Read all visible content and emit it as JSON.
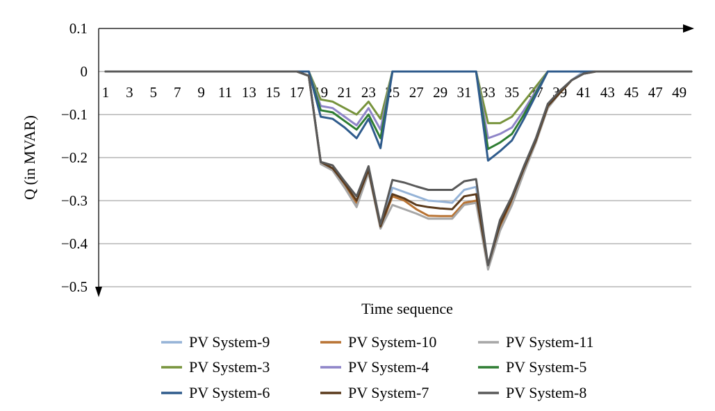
{
  "chart_data": {
    "type": "line",
    "xlabel": "Time sequence",
    "ylabel": "Q (in MVAR)",
    "ylim": [
      -0.5,
      0.1
    ],
    "xlim": [
      1,
      50
    ],
    "grid": "horizontal",
    "legend_position": "bottom",
    "y_ticks": [
      {
        "value": 0.1,
        "label": "0.1"
      },
      {
        "value": 0,
        "label": "0"
      },
      {
        "value": -0.1,
        "label": "−0.1"
      },
      {
        "value": -0.2,
        "label": "−0.2"
      },
      {
        "value": -0.3,
        "label": "−0.3"
      },
      {
        "value": -0.4,
        "label": "−0.4"
      },
      {
        "value": -0.5,
        "label": "−0.5"
      }
    ],
    "x_ticks": [
      1,
      3,
      5,
      7,
      9,
      11,
      13,
      15,
      17,
      19,
      21,
      23,
      25,
      27,
      29,
      31,
      33,
      35,
      37,
      39,
      41,
      43,
      45,
      47,
      49
    ],
    "x": [
      1,
      2,
      3,
      4,
      5,
      6,
      7,
      8,
      9,
      10,
      11,
      12,
      13,
      14,
      15,
      16,
      17,
      18,
      19,
      20,
      21,
      22,
      23,
      24,
      25,
      26,
      27,
      28,
      29,
      30,
      31,
      32,
      33,
      34,
      35,
      36,
      37,
      38,
      39,
      40,
      41,
      42,
      43,
      44,
      45,
      46,
      47,
      48,
      49,
      50
    ],
    "series": [
      {
        "name": "PV System-9",
        "color": "#95b3d7",
        "values": [
          0,
          0,
          0,
          0,
          0,
          0,
          0,
          0,
          0,
          0,
          0,
          0,
          0,
          0,
          0,
          0,
          0,
          -0.01,
          -0.21,
          -0.225,
          -0.26,
          -0.31,
          -0.23,
          -0.36,
          -0.27,
          -0.28,
          -0.29,
          -0.3,
          -0.302,
          -0.305,
          -0.275,
          -0.268,
          -0.455,
          -0.36,
          -0.3,
          -0.23,
          -0.16,
          -0.08,
          -0.05,
          -0.02,
          0,
          0,
          0,
          0,
          0,
          0,
          0,
          0,
          0,
          0
        ]
      },
      {
        "name": "PV System-10",
        "color": "#b87333",
        "values": [
          0,
          0,
          0,
          0,
          0,
          0,
          0,
          0,
          0,
          0,
          0,
          0,
          0,
          0,
          0,
          0,
          0,
          -0.01,
          -0.212,
          -0.228,
          -0.265,
          -0.305,
          -0.232,
          -0.362,
          -0.29,
          -0.3,
          -0.32,
          -0.335,
          -0.336,
          -0.336,
          -0.305,
          -0.3,
          -0.45,
          -0.36,
          -0.3,
          -0.23,
          -0.165,
          -0.08,
          -0.05,
          -0.02,
          -0.005,
          0,
          0,
          0,
          0,
          0,
          0,
          0,
          0,
          0
        ]
      },
      {
        "name": "PV System-11",
        "color": "#a6a6a6",
        "values": [
          0,
          0,
          0,
          0,
          0,
          0,
          0,
          0,
          0,
          0,
          0,
          0,
          0,
          0,
          0,
          0,
          0,
          -0.01,
          -0.215,
          -0.23,
          -0.27,
          -0.315,
          -0.235,
          -0.365,
          -0.31,
          -0.32,
          -0.33,
          -0.342,
          -0.342,
          -0.342,
          -0.31,
          -0.305,
          -0.46,
          -0.37,
          -0.31,
          -0.235,
          -0.165,
          -0.085,
          -0.05,
          -0.02,
          -0.005,
          0,
          0,
          0,
          0,
          0,
          0,
          0,
          0,
          0
        ]
      },
      {
        "name": "PV System-3",
        "color": "#77933c",
        "values": [
          0,
          0,
          0,
          0,
          0,
          0,
          0,
          0,
          0,
          0,
          0,
          0,
          0,
          0,
          0,
          0,
          0,
          0,
          -0.065,
          -0.07,
          -0.085,
          -0.1,
          -0.07,
          -0.11,
          0,
          0,
          0,
          0,
          0,
          0,
          0,
          0,
          -0.12,
          -0.12,
          -0.105,
          -0.07,
          -0.035,
          0,
          0,
          0,
          0,
          0,
          0,
          0,
          0,
          0,
          0,
          0,
          0,
          0
        ]
      },
      {
        "name": "PV System-4",
        "color": "#8e84c8",
        "values": [
          0,
          0,
          0,
          0,
          0,
          0,
          0,
          0,
          0,
          0,
          0,
          0,
          0,
          0,
          0,
          0,
          0,
          0,
          -0.08,
          -0.085,
          -0.105,
          -0.125,
          -0.085,
          -0.135,
          0,
          0,
          0,
          0,
          0,
          0,
          0,
          0,
          -0.155,
          -0.145,
          -0.13,
          -0.09,
          -0.045,
          0,
          0,
          0,
          0,
          0,
          0,
          0,
          0,
          0,
          0,
          0,
          0,
          0
        ]
      },
      {
        "name": "PV System-5",
        "color": "#2e7d32",
        "values": [
          0,
          0,
          0,
          0,
          0,
          0,
          0,
          0,
          0,
          0,
          0,
          0,
          0,
          0,
          0,
          0,
          0,
          0,
          -0.09,
          -0.095,
          -0.115,
          -0.135,
          -0.1,
          -0.155,
          0,
          0,
          0,
          0,
          0,
          0,
          0,
          0,
          -0.18,
          -0.165,
          -0.145,
          -0.1,
          -0.05,
          0,
          0,
          0,
          0,
          0,
          0,
          0,
          0,
          0,
          0,
          0,
          0,
          0
        ]
      },
      {
        "name": "PV System-6",
        "color": "#2f5b8c",
        "values": [
          0,
          0,
          0,
          0,
          0,
          0,
          0,
          0,
          0,
          0,
          0,
          0,
          0,
          0,
          0,
          0,
          0,
          0,
          -0.105,
          -0.11,
          -0.13,
          -0.155,
          -0.11,
          -0.178,
          0,
          0,
          0,
          0,
          0,
          0,
          0,
          0,
          -0.207,
          -0.185,
          -0.16,
          -0.11,
          -0.055,
          0,
          0,
          0,
          0,
          0,
          0,
          0,
          0,
          0,
          0,
          0,
          0,
          0
        ]
      },
      {
        "name": "PV System-7",
        "color": "#5a3a1c",
        "values": [
          0,
          0,
          0,
          0,
          0,
          0,
          0,
          0,
          0,
          0,
          0,
          0,
          0,
          0,
          0,
          0,
          0,
          -0.01,
          -0.21,
          -0.225,
          -0.26,
          -0.3,
          -0.228,
          -0.36,
          -0.285,
          -0.295,
          -0.31,
          -0.315,
          -0.318,
          -0.32,
          -0.29,
          -0.285,
          -0.45,
          -0.355,
          -0.295,
          -0.225,
          -0.16,
          -0.08,
          -0.05,
          -0.02,
          -0.005,
          0,
          0,
          0,
          0,
          0,
          0,
          0,
          0,
          0
        ]
      },
      {
        "name": "PV System-8",
        "color": "#595959",
        "values": [
          0,
          0,
          0,
          0,
          0,
          0,
          0,
          0,
          0,
          0,
          0,
          0,
          0,
          0,
          0,
          0,
          0,
          -0.01,
          -0.21,
          -0.218,
          -0.255,
          -0.29,
          -0.22,
          -0.355,
          -0.252,
          -0.258,
          -0.267,
          -0.275,
          -0.275,
          -0.275,
          -0.255,
          -0.25,
          -0.45,
          -0.345,
          -0.29,
          -0.22,
          -0.155,
          -0.075,
          -0.045,
          -0.02,
          -0.005,
          0,
          0,
          0,
          0,
          0,
          0,
          0,
          0,
          0
        ]
      }
    ]
  }
}
